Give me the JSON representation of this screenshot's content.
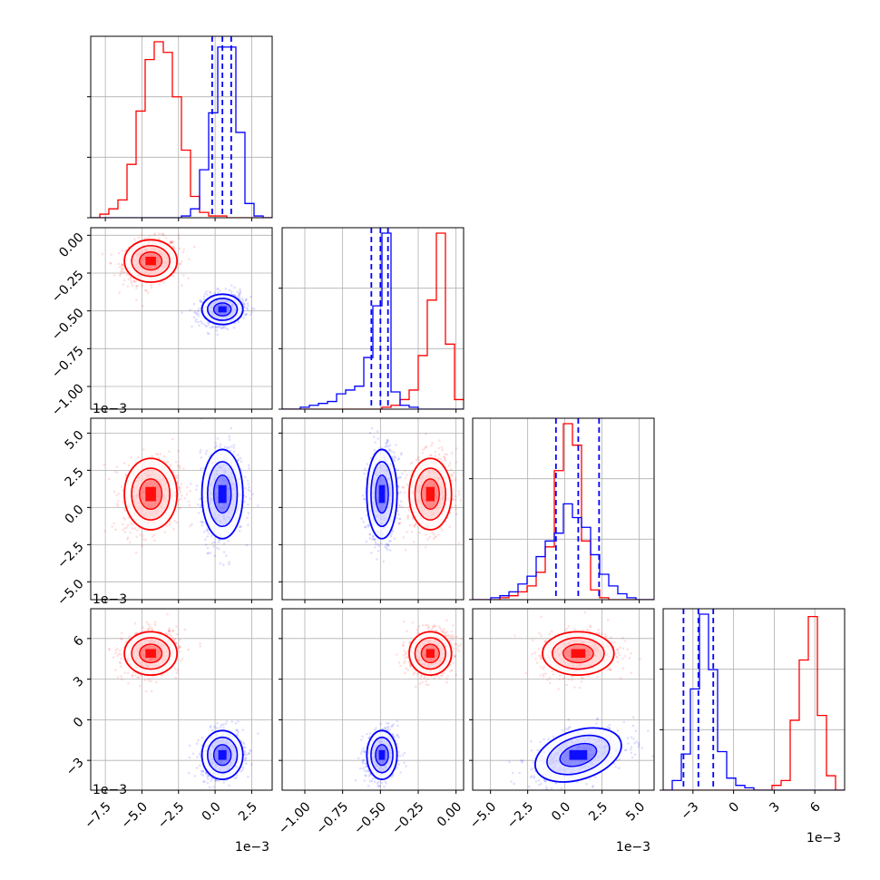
{
  "colors": {
    "red": "#ff0000",
    "blue": "#0000ff",
    "grid": "#b0b0b0",
    "axis": "#000000"
  },
  "chart_data": {
    "type": "corner",
    "grid": true,
    "series": [
      {
        "color": "#ff0000",
        "mean": [
          -0.0044,
          -0.00017,
          0.0009,
          0.0049
        ],
        "sd": [
          0.0009,
          7e-05,
          0.0012,
          0.0008
        ]
      },
      {
        "color": "#0000ff",
        "mean": [
          0.0005,
          -0.00049,
          0.0009,
          -0.0026
        ],
        "sd": [
          0.0007,
          5e-05,
          0.0015,
          0.0009
        ],
        "quantiles": [
          [
            -0.0002,
            0.0005,
            0.0011
          ],
          [
            -0.00056,
            -0.0005,
            -0.00045
          ],
          [
            -0.0006,
            0.0009,
            0.0023
          ],
          [
            -0.0037,
            -0.0026,
            -0.0015
          ]
        ]
      }
    ],
    "variables": [
      {
        "range": [
          -0.0085,
          0.0039
        ],
        "ticks": [
          -0.0075,
          -0.005,
          -0.0025,
          0.0,
          0.0025
        ],
        "tick_labels": [
          "−7.5",
          "−5.0",
          "−2.5",
          "0.0",
          "2.5"
        ],
        "offset_label": "1e−3"
      },
      {
        "range": [
          -0.00115,
          5e-05
        ],
        "ticks": [
          -0.001,
          -0.00075,
          -0.0005,
          -0.00025,
          0.0
        ],
        "tick_labels": [
          "−1.00",
          "−0.75",
          "−0.50",
          "−0.25",
          "0.00"
        ],
        "offset_label": "1e−3"
      },
      {
        "range": [
          -0.0062,
          0.006
        ],
        "ticks": [
          -0.005,
          -0.0025,
          0.0,
          0.0025,
          0.005
        ],
        "tick_labels": [
          "−5.0",
          "−2.5",
          "0.0",
          "2.5",
          "5.0"
        ],
        "offset_label": "1e−3"
      },
      {
        "range": [
          -0.0052,
          0.0082
        ],
        "ticks": [
          -0.003,
          0.0,
          0.003,
          0.006
        ],
        "tick_labels": [
          "−3",
          "0",
          "3",
          "6"
        ],
        "offset_label": "1e−3"
      }
    ],
    "histograms": [
      {
        "bins": 20,
        "red": [
          0,
          0.02,
          0.05,
          0.1,
          0.3,
          0.6,
          0.89,
          0.99,
          0.93,
          0.68,
          0.38,
          0.12,
          0.03,
          0.01,
          0.01,
          0,
          0,
          0,
          0,
          0
        ],
        "blue": [
          0,
          0,
          0,
          0,
          0,
          0,
          0,
          0,
          0,
          0,
          0.01,
          0.05,
          0.27,
          0.59,
          0.96,
          0.96,
          0.48,
          0.08,
          0.01,
          0
        ]
      },
      {
        "bins": 20,
        "red": [
          0,
          0,
          0,
          0,
          0,
          0,
          0,
          0,
          0,
          0,
          0,
          0.01,
          0.02,
          0.05,
          0.1,
          0.28,
          0.57,
          0.92,
          0.34,
          0.05
        ],
        "blue": [
          0,
          0,
          0.01,
          0.02,
          0.03,
          0.04,
          0.08,
          0.1,
          0.12,
          0.27,
          0.54,
          0.92,
          0.09,
          0.02,
          0.01,
          0,
          0,
          0,
          0,
          0
        ]
      },
      {
        "bins": 20,
        "red": [
          0,
          0,
          0,
          0.01,
          0.02,
          0.04,
          0.07,
          0.14,
          0.27,
          0.66,
          0.9,
          0.79,
          0.3,
          0.05,
          0.01,
          0,
          0,
          0,
          0,
          0
        ],
        "blue": [
          0,
          0,
          0.01,
          0.02,
          0.04,
          0.08,
          0.12,
          0.22,
          0.3,
          0.34,
          0.49,
          0.42,
          0.37,
          0.23,
          0.13,
          0.07,
          0.03,
          0.01,
          0,
          0
        ]
      },
      {
        "bins": 20,
        "red": [
          0,
          0,
          0,
          0,
          0,
          0,
          0,
          0,
          0,
          0,
          0,
          0,
          0.02,
          0.04,
          0.29,
          0.54,
          0.72,
          0.31,
          0.06,
          0
        ],
        "blue": [
          0,
          0.04,
          0.15,
          0.42,
          0.73,
          0.5,
          0.16,
          0.05,
          0.02,
          0.01,
          0,
          0,
          0,
          0,
          0,
          0,
          0,
          0,
          0,
          0
        ]
      }
    ]
  }
}
